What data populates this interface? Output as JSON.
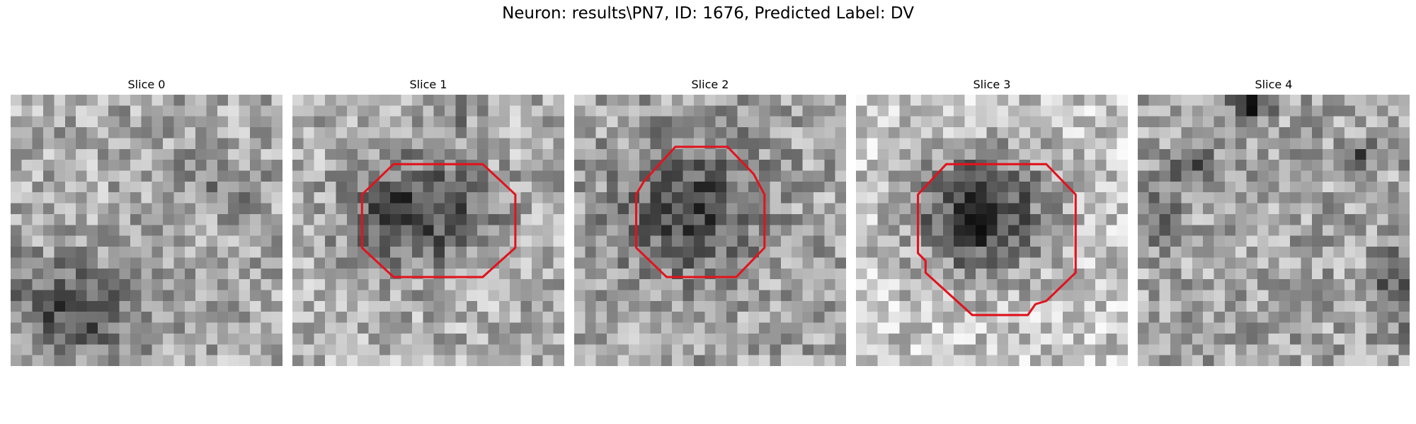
{
  "figure": {
    "title": "Neuron: results\\PN7, ID: 1676, Predicted Label: DV"
  },
  "grid_size": 25,
  "outline_color": "#e0141e",
  "panels": [
    {
      "title": "Slice 0",
      "has_outline": false,
      "blobs": [
        {
          "x": 6,
          "y": 19.5,
          "rx": 7,
          "ry": 4.5,
          "depth": 95
        },
        {
          "x": 18,
          "y": 7.5,
          "rx": 3,
          "ry": 3,
          "depth": 40
        },
        {
          "x": 22,
          "y": 8.5,
          "rx": 2,
          "ry": 2,
          "depth": 35
        }
      ],
      "base": 170
    },
    {
      "title": "Slice 1",
      "has_outline": true,
      "blobs": [
        {
          "x": 11.5,
          "y": 11,
          "rx": 6.5,
          "ry": 5,
          "depth": 115
        },
        {
          "x": 15,
          "y": 2,
          "rx": 2,
          "ry": 2,
          "depth": 40
        }
      ],
      "base": 175,
      "outline": [
        [
          9.3,
          6.4
        ],
        [
          17.5,
          6.4
        ],
        [
          20.5,
          9.2
        ],
        [
          20.5,
          14.1
        ],
        [
          17.5,
          16.8
        ],
        [
          9.3,
          16.8
        ],
        [
          6.4,
          14.1
        ],
        [
          6.4,
          9.2
        ]
      ]
    },
    {
      "title": "Slice 2",
      "has_outline": true,
      "blobs": [
        {
          "x": 10.5,
          "y": 10.5,
          "rx": 6.5,
          "ry": 6.5,
          "depth": 95
        }
      ],
      "base": 165,
      "outline": [
        [
          9.3,
          4.8
        ],
        [
          14.1,
          4.8
        ],
        [
          16.5,
          7.3
        ],
        [
          17.5,
          9.2
        ],
        [
          17.5,
          14.1
        ],
        [
          14.9,
          16.8
        ],
        [
          8.5,
          16.8
        ],
        [
          5.7,
          14.1
        ],
        [
          5.7,
          9.2
        ],
        [
          6.4,
          8.0
        ]
      ]
    },
    {
      "title": "Slice 3",
      "has_outline": true,
      "blobs": [
        {
          "x": 11.5,
          "y": 11,
          "rx": 6.5,
          "ry": 6,
          "depth": 150
        }
      ],
      "base": 200,
      "outline": [
        [
          8.3,
          6.4
        ],
        [
          17.5,
          6.4
        ],
        [
          20.2,
          9.2
        ],
        [
          20.2,
          16.4
        ],
        [
          17.5,
          19.0
        ],
        [
          16.5,
          19.3
        ],
        [
          15.8,
          20.3
        ],
        [
          10.7,
          20.3
        ],
        [
          6.4,
          16.4
        ],
        [
          6.4,
          15.3
        ],
        [
          5.7,
          14.6
        ],
        [
          5.7,
          9.2
        ]
      ]
    },
    {
      "title": "Slice 4",
      "has_outline": false,
      "blobs": [
        {
          "x": 10.5,
          "y": 1,
          "rx": 2,
          "ry": 1.5,
          "depth": 110
        },
        {
          "x": 5,
          "y": 6.5,
          "rx": 2,
          "ry": 1.5,
          "depth": 85
        },
        {
          "x": 20.5,
          "y": 6,
          "rx": 1.5,
          "ry": 1.5,
          "depth": 80
        },
        {
          "x": 1.5,
          "y": 11,
          "rx": 2.5,
          "ry": 3,
          "depth": 60
        },
        {
          "x": 23.5,
          "y": 18,
          "rx": 2,
          "ry": 4,
          "depth": 70
        }
      ],
      "base": 165
    }
  ]
}
